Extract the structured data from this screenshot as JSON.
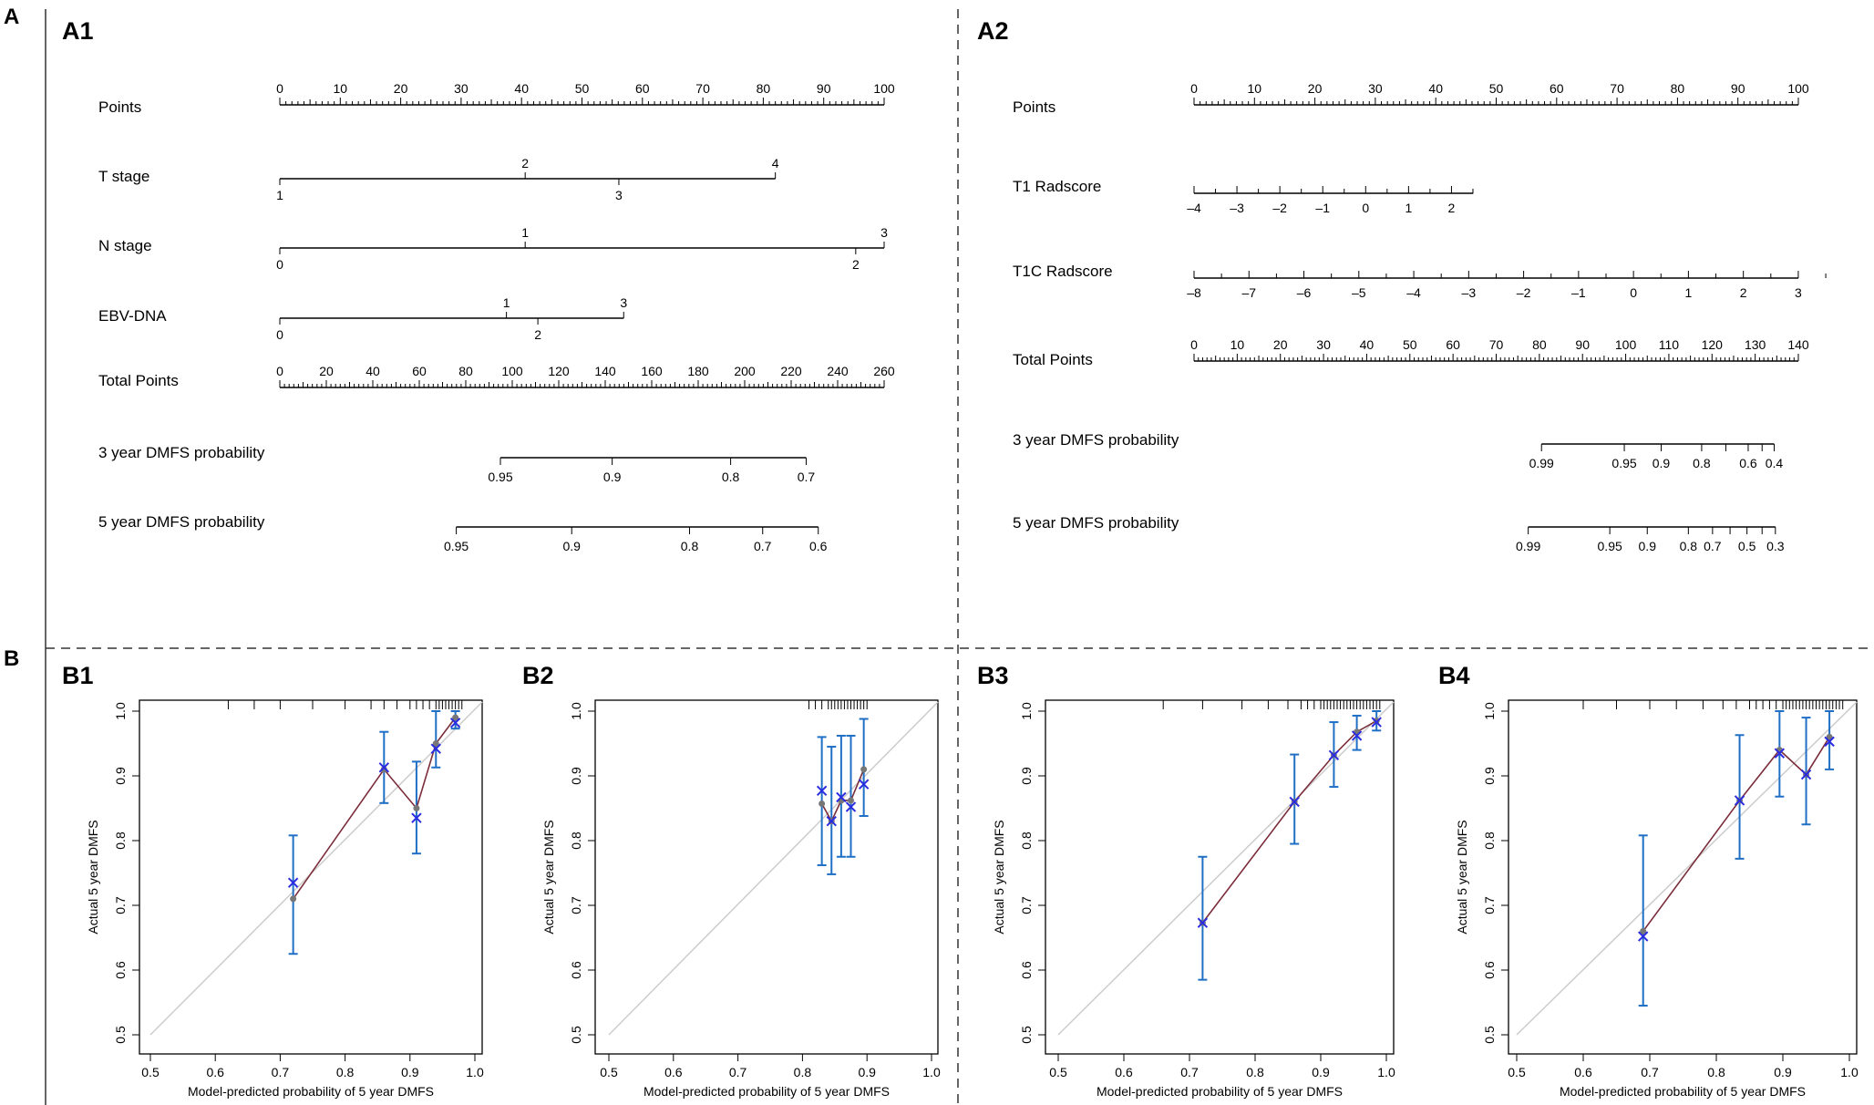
{
  "figure": {
    "panel_A": "A",
    "panel_B": "B",
    "panel_A1": "A1",
    "panel_A2": "A2"
  },
  "colors": {
    "line": "#000000",
    "divider": "#333333",
    "diagonal": "#cccccc",
    "calibration": "#7b2d3a",
    "errorbar": "#1f6fc5",
    "cross": "#2b2be0",
    "dot": "#777777"
  },
  "chart_data": [
    {
      "type": "nomogram",
      "panel": "A1",
      "rows": [
        {
          "label": "Points",
          "kind": "points",
          "range": [
            0,
            100
          ],
          "labels": [
            "0",
            "10",
            "20",
            "30",
            "40",
            "50",
            "60",
            "70",
            "80",
            "90",
            "100"
          ]
        },
        {
          "label": "T stage",
          "kind": "variable",
          "above": [
            {
              "t": "2",
              "p": 40.6
            },
            {
              "t": "4",
              "p": 82.0
            }
          ],
          "below": [
            {
              "t": "1",
              "p": 0
            },
            {
              "t": "3",
              "p": 56.1
            }
          ],
          "line": [
            0,
            82.0
          ]
        },
        {
          "label": "N stage",
          "kind": "variable",
          "above": [
            {
              "t": "1",
              "p": 40.6
            },
            {
              "t": "3",
              "p": 100
            }
          ],
          "below": [
            {
              "t": "0",
              "p": 0
            },
            {
              "t": "2",
              "p": 95.3
            }
          ],
          "line": [
            0,
            100
          ]
        },
        {
          "label": "EBV-DNA",
          "kind": "variable",
          "above": [
            {
              "t": "1",
              "p": 37.5
            },
            {
              "t": "3",
              "p": 56.9
            }
          ],
          "below": [
            {
              "t": "0",
              "p": 0
            },
            {
              "t": "2",
              "p": 42.7
            }
          ],
          "line": [
            0,
            56.9
          ]
        },
        {
          "label": "Total Points",
          "kind": "total",
          "range": [
            0,
            260
          ],
          "labels": [
            "0",
            "20",
            "40",
            "60",
            "80",
            "100",
            "120",
            "140",
            "160",
            "180",
            "200",
            "220",
            "240",
            "260"
          ]
        },
        {
          "label": "3 year DMFS probability",
          "kind": "prob",
          "ticks": [
            {
              "t": "0.95",
              "p": 36.5
            },
            {
              "t": "0.9",
              "p": 55.0
            },
            {
              "t": "0.8",
              "p": 74.6
            },
            {
              "t": "0.7",
              "p": 87.1
            }
          ],
          "line": [
            36.5,
            87.1
          ]
        },
        {
          "label": "5 year DMFS probability",
          "kind": "prob",
          "ticks": [
            {
              "t": "0.95",
              "p": 29.2
            },
            {
              "t": "0.9",
              "p": 48.3
            },
            {
              "t": "0.8",
              "p": 67.8
            },
            {
              "t": "0.7",
              "p": 79.9
            },
            {
              "t": "0.6",
              "p": 89.1
            }
          ],
          "line": [
            29.2,
            89.1
          ]
        }
      ]
    },
    {
      "type": "nomogram",
      "panel": "A2",
      "rows": [
        {
          "label": "Points",
          "kind": "points",
          "range": [
            0,
            100
          ],
          "labels": [
            "0",
            "10",
            "20",
            "30",
            "40",
            "50",
            "60",
            "70",
            "80",
            "90",
            "100"
          ]
        },
        {
          "label": "T1 Radscore",
          "kind": "scale",
          "range": [
            -4,
            2.5
          ],
          "labels": [
            "-4",
            "-3",
            "-2",
            "-1",
            "0",
            "1",
            "2"
          ],
          "span": [
            0,
            46.2
          ],
          "step": 7.1
        },
        {
          "label": "T1C Radscore",
          "kind": "scale",
          "range": [
            -8,
            3
          ],
          "labels": [
            "-8",
            "-7",
            "-6",
            "-5",
            "-4",
            "-3",
            "-2",
            "-1",
            "0",
            "1",
            "2",
            "3"
          ],
          "span": [
            0,
            100
          ],
          "step": 9.09
        },
        {
          "label": "Total Points",
          "kind": "total",
          "range": [
            0,
            140
          ],
          "labels": [
            "0",
            "10",
            "20",
            "30",
            "40",
            "50",
            "60",
            "70",
            "80",
            "90",
            "100",
            "110",
            "120",
            "130",
            "140"
          ]
        },
        {
          "label": "3 year DMFS probability",
          "kind": "prob",
          "ticks": [
            {
              "t": "0.99",
              "p": 57.5
            },
            {
              "t": "0.95",
              "p": 71.2
            },
            {
              "t": "0.9",
              "p": 77.3
            },
            {
              "t": "0.8",
              "p": 84.0
            },
            {
              "t": "0.6",
              "p": 91.7
            },
            {
              "t": "0.4",
              "p": 96.0
            }
          ],
          "line": [
            57.5,
            96.0
          ],
          "minor": [
            88.0,
            94.0
          ]
        },
        {
          "label": "5 year DMFS probability",
          "kind": "prob",
          "ticks": [
            {
              "t": "0.99",
              "p": 55.3
            },
            {
              "t": "0.95",
              "p": 68.8
            },
            {
              "t": "0.9",
              "p": 75.0
            },
            {
              "t": "0.8",
              "p": 81.8
            },
            {
              "t": "0.7",
              "p": 85.8
            },
            {
              "t": "0.5",
              "p": 91.5
            },
            {
              "t": "0.3",
              "p": 96.2
            }
          ],
          "line": [
            55.3,
            96.2
          ],
          "minor": [
            88.7,
            94.0
          ]
        }
      ]
    },
    {
      "type": "calibration",
      "panel": "B1",
      "title": "B1",
      "xlabel": "Model-predicted probability of 5 year DMFS",
      "ylabel": "Actual 5 year DMFS",
      "xlim": [
        0.5,
        1.0
      ],
      "ylim": [
        0.5,
        1.0
      ],
      "xticks": [
        "0.5",
        "0.6",
        "0.7",
        "0.8",
        "0.9",
        "1.0"
      ],
      "yticks": [
        "0.5",
        "0.6",
        "0.7",
        "0.8",
        "0.9",
        "1.0"
      ],
      "apparent": [
        [
          0.72,
          0.71
        ],
        [
          0.86,
          0.91
        ],
        [
          0.91,
          0.85
        ],
        [
          0.94,
          0.95
        ],
        [
          0.97,
          0.99
        ]
      ],
      "corrected": [
        [
          0.72,
          0.735
        ],
        [
          0.86,
          0.913
        ],
        [
          0.91,
          0.835
        ],
        [
          0.94,
          0.942
        ],
        [
          0.97,
          0.982
        ]
      ],
      "errors": [
        [
          0.72,
          0.625,
          0.808
        ],
        [
          0.86,
          0.858,
          0.968
        ],
        [
          0.91,
          0.78,
          0.922
        ],
        [
          0.94,
          0.913,
          1.0
        ],
        [
          0.97,
          0.973,
          1.0
        ]
      ],
      "rug": [
        0.62,
        0.66,
        0.7,
        0.75,
        0.8,
        0.84,
        0.86,
        0.88,
        0.9,
        0.91,
        0.92,
        0.93,
        0.94,
        0.945,
        0.95,
        0.955,
        0.96,
        0.965,
        0.97,
        0.975,
        0.98
      ]
    },
    {
      "type": "calibration",
      "panel": "B2",
      "title": "B2",
      "xlabel": "Model-predicted probability of 5 year DMFS",
      "ylabel": "Actual 5 year DMFS",
      "xlim": [
        0.5,
        1.0
      ],
      "ylim": [
        0.5,
        1.0
      ],
      "xticks": [
        "0.5",
        "0.6",
        "0.7",
        "0.8",
        "0.9",
        "1.0"
      ],
      "yticks": [
        "0.5",
        "0.6",
        "0.7",
        "0.8",
        "0.9",
        "1.0"
      ],
      "apparent": [
        [
          0.83,
          0.857
        ],
        [
          0.845,
          0.83
        ],
        [
          0.86,
          0.862
        ],
        [
          0.875,
          0.862
        ],
        [
          0.895,
          0.91
        ]
      ],
      "corrected": [
        [
          0.83,
          0.877
        ],
        [
          0.845,
          0.83
        ],
        [
          0.86,
          0.867
        ],
        [
          0.875,
          0.852
        ],
        [
          0.895,
          0.887
        ]
      ],
      "errors": [
        [
          0.83,
          0.762,
          0.96
        ],
        [
          0.845,
          0.748,
          0.945
        ],
        [
          0.86,
          0.775,
          0.962
        ],
        [
          0.875,
          0.775,
          0.962
        ],
        [
          0.895,
          0.838,
          0.988
        ]
      ],
      "rug": [
        0.81,
        0.82,
        0.83,
        0.84,
        0.845,
        0.85,
        0.855,
        0.86,
        0.865,
        0.87,
        0.875,
        0.88,
        0.885,
        0.89,
        0.895,
        0.9
      ]
    },
    {
      "type": "calibration",
      "panel": "B3",
      "title": "B3",
      "xlabel": "Model-predicted probability of 5 year DMFS",
      "ylabel": "Actual 5 year DMFS",
      "xlim": [
        0.5,
        1.0
      ],
      "ylim": [
        0.5,
        1.0
      ],
      "xticks": [
        "0.5",
        "0.6",
        "0.7",
        "0.8",
        "0.9",
        "1.0"
      ],
      "yticks": [
        "0.5",
        "0.6",
        "0.7",
        "0.8",
        "0.9",
        "1.0"
      ],
      "apparent": [
        [
          0.72,
          0.673
        ],
        [
          0.86,
          0.86
        ],
        [
          0.92,
          0.932
        ],
        [
          0.955,
          0.968
        ],
        [
          0.985,
          0.985
        ]
      ],
      "corrected": [
        [
          0.72,
          0.673
        ],
        [
          0.86,
          0.86
        ],
        [
          0.92,
          0.932
        ],
        [
          0.955,
          0.962
        ],
        [
          0.985,
          0.983
        ]
      ],
      "errors": [
        [
          0.72,
          0.585,
          0.775
        ],
        [
          0.86,
          0.795,
          0.933
        ],
        [
          0.92,
          0.883,
          0.983
        ],
        [
          0.955,
          0.94,
          0.993
        ],
        [
          0.985,
          0.97,
          1.0
        ]
      ],
      "rug": [
        0.66,
        0.72,
        0.78,
        0.82,
        0.85,
        0.87,
        0.88,
        0.89,
        0.9,
        0.905,
        0.91,
        0.915,
        0.92,
        0.925,
        0.93,
        0.935,
        0.94,
        0.945,
        0.95,
        0.955,
        0.96,
        0.965,
        0.97,
        0.975,
        0.98,
        0.985,
        0.99
      ]
    },
    {
      "type": "calibration",
      "panel": "B4",
      "title": "B4",
      "xlabel": "Model-predicted probability of 5 year DMFS",
      "ylabel": "Actual 5 year DMFS",
      "xlim": [
        0.5,
        1.0
      ],
      "ylim": [
        0.5,
        1.0
      ],
      "xticks": [
        "0.5",
        "0.6",
        "0.7",
        "0.8",
        "0.9",
        "1.0"
      ],
      "yticks": [
        "0.5",
        "0.6",
        "0.7",
        "0.8",
        "0.9",
        "1.0"
      ],
      "apparent": [
        [
          0.69,
          0.66
        ],
        [
          0.835,
          0.862
        ],
        [
          0.895,
          0.94
        ],
        [
          0.935,
          0.902
        ],
        [
          0.97,
          0.96
        ]
      ],
      "corrected": [
        [
          0.69,
          0.652
        ],
        [
          0.835,
          0.862
        ],
        [
          0.895,
          0.935
        ],
        [
          0.935,
          0.902
        ],
        [
          0.97,
          0.953
        ]
      ],
      "errors": [
        [
          0.69,
          0.545,
          0.808
        ],
        [
          0.835,
          0.772,
          0.963
        ],
        [
          0.895,
          0.868,
          1.0
        ],
        [
          0.935,
          0.825,
          0.99
        ],
        [
          0.97,
          0.91,
          1.0
        ]
      ],
      "rug": [
        0.6,
        0.65,
        0.7,
        0.74,
        0.78,
        0.81,
        0.83,
        0.85,
        0.86,
        0.87,
        0.88,
        0.89,
        0.9,
        0.905,
        0.91,
        0.915,
        0.92,
        0.925,
        0.93,
        0.935,
        0.94,
        0.945,
        0.95,
        0.955,
        0.96,
        0.965,
        0.97,
        0.975,
        0.98,
        0.985,
        0.99
      ]
    }
  ]
}
